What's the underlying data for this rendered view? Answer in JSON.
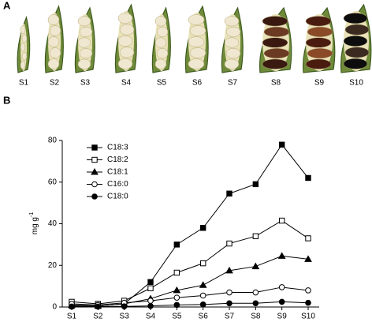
{
  "panel_a": {
    "label": "A",
    "pods": [
      "S1",
      "S2",
      "S3",
      "S4",
      "S5",
      "S6",
      "S7",
      "S8",
      "S9",
      "S10"
    ]
  },
  "chart_data": {
    "type": "line",
    "panel_label": "B",
    "ylabel": "mg g",
    "ylabel_sup": "-1",
    "categories": [
      "S1",
      "S2",
      "S3",
      "S4",
      "S5",
      "S6",
      "S7",
      "S8",
      "S9",
      "S10"
    ],
    "ylim": [
      0,
      80
    ],
    "yticks": [
      0,
      20,
      40,
      60,
      80
    ],
    "legend": "upper left",
    "series": [
      {
        "name": "C18:3",
        "color": "#000000",
        "marker": "square",
        "filled": true,
        "values": [
          0.5,
          0.5,
          1.5,
          12,
          30,
          38,
          54.5,
          59,
          78,
          62
        ]
      },
      {
        "name": "C18:2",
        "color": "#000000",
        "marker": "square",
        "filled": false,
        "values": [
          2.5,
          1.5,
          3,
          9,
          16.5,
          21,
          30.5,
          34,
          41.5,
          33
        ]
      },
      {
        "name": "C18:1",
        "color": "#000000",
        "marker": "triangle",
        "filled": true,
        "values": [
          1,
          0.5,
          1.5,
          4,
          8,
          10.5,
          17.5,
          19.5,
          24.5,
          23
        ]
      },
      {
        "name": "C16:0",
        "color": "#000000",
        "marker": "circle",
        "filled": false,
        "values": [
          1.5,
          1,
          2,
          3,
          4.5,
          5.5,
          7,
          7,
          9.5,
          8
        ]
      },
      {
        "name": "C18:0",
        "color": "#000000",
        "marker": "circle",
        "filled": true,
        "values": [
          0.2,
          0.2,
          0.3,
          0.5,
          1,
          1.2,
          1.8,
          1.8,
          2.5,
          2
        ]
      }
    ]
  }
}
